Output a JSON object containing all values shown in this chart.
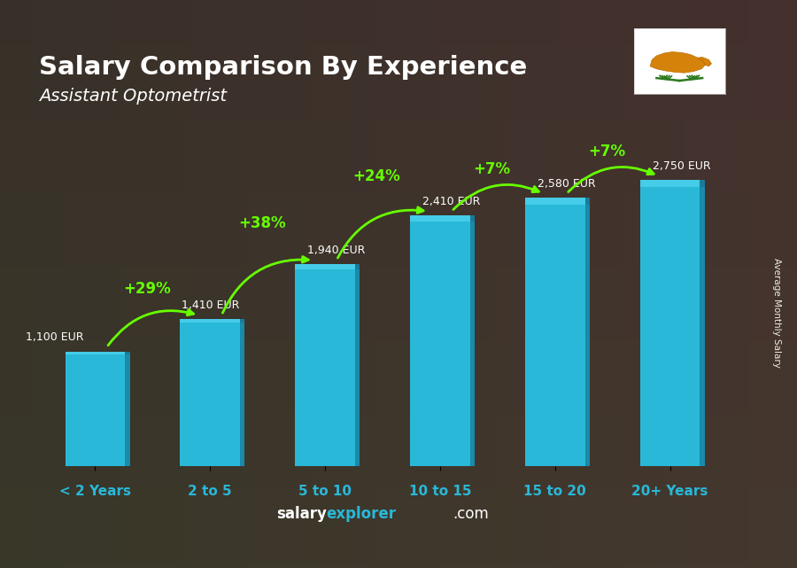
{
  "title": "Salary Comparison By Experience",
  "subtitle": "Assistant Optometrist",
  "categories": [
    "< 2 Years",
    "2 to 5",
    "5 to 10",
    "10 to 15",
    "15 to 20",
    "20+ Years"
  ],
  "values": [
    1100,
    1410,
    1940,
    2410,
    2580,
    2750
  ],
  "bar_color_main": "#29b8d8",
  "bar_color_side": "#1a8aaa",
  "bar_color_top": "#45cce8",
  "bar_width": 0.52,
  "salary_labels": [
    "1,100 EUR",
    "1,410 EUR",
    "1,940 EUR",
    "2,410 EUR",
    "2,580 EUR",
    "2,750 EUR"
  ],
  "pct_labels": [
    "+29%",
    "+38%",
    "+24%",
    "+7%",
    "+7%"
  ],
  "pct_color": "#66ff00",
  "arrow_color": "#66ff00",
  "title_color": "#ffffff",
  "subtitle_color": "#ffffff",
  "tick_color": "#29b8d8",
  "salary_label_color": "#ffffff",
  "ylabel_text": "Average Monthly Salary",
  "footer_salary_color": "#ffffff",
  "footer_explorer_color": "#29b8d8",
  "footer_com_color": "#ffffff",
  "bg_color": "#2d3250",
  "xlim": [
    -0.55,
    5.55
  ],
  "ylim": [
    0,
    3500
  ]
}
